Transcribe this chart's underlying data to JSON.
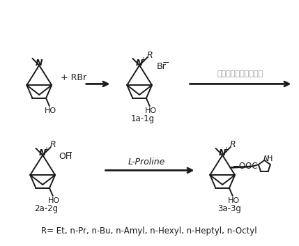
{
  "figsize": [
    4.29,
    3.53
  ],
  "dpi": 100,
  "bg_color": "#ffffff",
  "title_text": "R= Et, n-Pr, n-Bu, n-Amyl, n-Hexyl, n-Heptyl, n-Octyl",
  "label_1ag": "1a-1g",
  "label_2ag": "2a-2g",
  "label_3ag": "3a-3g",
  "reagent_top_cn": "强碷性阴离子交换树脂",
  "reagent_bottom": "L-Proline",
  "arrow_color": "#1a1a1a",
  "text_color": "#1a1a1a",
  "cn_text_color": "#999999",
  "struct_line_color": "#1a1a1a"
}
